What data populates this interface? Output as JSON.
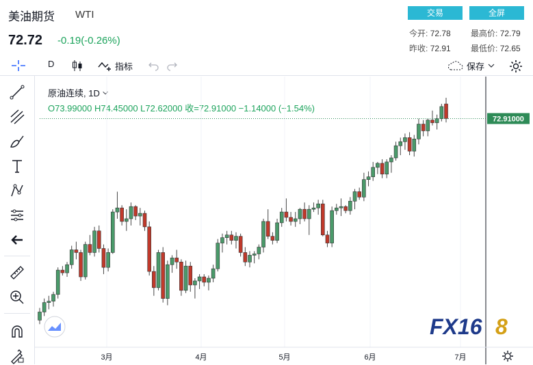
{
  "header": {
    "title": "美油期货",
    "symbol": "WTI",
    "price": "72.72",
    "change": "-0.19(-0.26%)",
    "buttons": {
      "trade": "交易",
      "fullscreen": "全屏"
    },
    "stats": {
      "open_label": "今开:",
      "open": "72.78",
      "high_label": "最高价:",
      "high": "72.79",
      "prev_label": "昨收:",
      "prev": "72.91",
      "low_label": "最低价:",
      "low": "72.65"
    }
  },
  "toolbar": {
    "interval": "D",
    "indicators_label": "指标",
    "save_label": "保存"
  },
  "legend": {
    "name": "原油连续, 1D",
    "ohlc": "O73.99000  H74.45000  L72.62000  收=72.91000  −1.14000 (−1.54%)"
  },
  "watermark": {
    "text_main": "FX16",
    "text_end": "8"
  },
  "colors": {
    "up": "#26a69a",
    "down": "#ef5350",
    "up_fill": "#4a9a6a",
    "down_fill": "#c0392b",
    "price_label": "#2e8b57",
    "accent": "#2bb8d4"
  },
  "chart_data": {
    "type": "candlestick",
    "symbol": "原油连续",
    "interval": "1D",
    "last_price_label": "72.91000",
    "x_ticks": [
      "3月",
      "4月",
      "5月",
      "6月",
      "7月"
    ],
    "ylim": [
      56.5,
      74.5
    ],
    "candles": [
      [
        58.0,
        58.9,
        57.7,
        58.6
      ],
      [
        58.6,
        59.6,
        58.3,
        59.3
      ],
      [
        59.3,
        59.8,
        58.8,
        59.4
      ],
      [
        59.4,
        60.1,
        59.0,
        59.9
      ],
      [
        59.9,
        61.9,
        59.6,
        61.7
      ],
      [
        61.7,
        62.0,
        61.3,
        61.5
      ],
      [
        61.5,
        62.3,
        61.2,
        62.1
      ],
      [
        62.1,
        63.5,
        61.8,
        63.2
      ],
      [
        63.2,
        63.8,
        62.5,
        63.0
      ],
      [
        63.0,
        63.2,
        60.9,
        61.2
      ],
      [
        61.2,
        63.8,
        61.0,
        63.6
      ],
      [
        63.6,
        64.3,
        62.8,
        63.0
      ],
      [
        63.0,
        64.9,
        62.7,
        64.6
      ],
      [
        64.6,
        65.0,
        63.0,
        63.3
      ],
      [
        63.3,
        63.6,
        61.4,
        61.9
      ],
      [
        61.9,
        63.3,
        61.6,
        63.0
      ],
      [
        63.0,
        66.2,
        62.9,
        66.0
      ],
      [
        66.0,
        67.5,
        65.5,
        66.3
      ],
      [
        66.3,
        66.5,
        65.0,
        65.3
      ],
      [
        65.3,
        66.2,
        64.6,
        65.5
      ],
      [
        65.5,
        66.7,
        65.0,
        66.4
      ],
      [
        66.4,
        66.5,
        65.4,
        65.7
      ],
      [
        65.7,
        66.3,
        65.0,
        65.9
      ],
      [
        65.9,
        66.1,
        64.6,
        64.9
      ],
      [
        64.9,
        65.3,
        61.3,
        61.6
      ],
      [
        61.6,
        62.0,
        59.8,
        60.4
      ],
      [
        60.4,
        63.2,
        60.2,
        63.0
      ],
      [
        63.0,
        63.4,
        59.3,
        59.6
      ],
      [
        59.6,
        62.4,
        59.1,
        62.1
      ],
      [
        62.1,
        62.8,
        61.5,
        62.6
      ],
      [
        62.6,
        63.2,
        61.8,
        62.3
      ],
      [
        62.3,
        62.5,
        59.8,
        60.2
      ],
      [
        60.2,
        62.4,
        60.0,
        62.0
      ],
      [
        62.0,
        62.3,
        60.1,
        60.6
      ],
      [
        60.6,
        61.1,
        59.6,
        60.9
      ],
      [
        60.9,
        61.4,
        60.3,
        61.2
      ],
      [
        61.2,
        61.4,
        60.5,
        60.8
      ],
      [
        60.8,
        61.3,
        60.2,
        61.1
      ],
      [
        61.1,
        62.1,
        60.8,
        61.8
      ],
      [
        61.8,
        64.0,
        61.6,
        63.7
      ],
      [
        63.7,
        64.4,
        63.0,
        64.1
      ],
      [
        64.1,
        64.6,
        63.6,
        64.3
      ],
      [
        64.3,
        64.6,
        63.6,
        63.9
      ],
      [
        63.9,
        64.5,
        63.3,
        64.2
      ],
      [
        64.2,
        64.4,
        62.7,
        63.0
      ],
      [
        63.0,
        63.4,
        62.0,
        62.3
      ],
      [
        62.3,
        63.1,
        61.9,
        62.8
      ],
      [
        62.8,
        63.1,
        62.2,
        62.9
      ],
      [
        62.9,
        63.6,
        62.5,
        63.4
      ],
      [
        63.4,
        65.5,
        63.0,
        65.3
      ],
      [
        65.3,
        66.2,
        64.0,
        64.2
      ],
      [
        64.2,
        64.5,
        63.6,
        63.9
      ],
      [
        63.9,
        65.5,
        63.7,
        65.2
      ],
      [
        65.2,
        66.3,
        64.9,
        66.0
      ],
      [
        66.0,
        67.0,
        65.3,
        65.6
      ],
      [
        65.6,
        66.0,
        65.0,
        65.3
      ],
      [
        65.3,
        66.0,
        64.9,
        65.5
      ],
      [
        65.5,
        66.3,
        65.1,
        66.2
      ],
      [
        66.2,
        66.7,
        65.3,
        65.5
      ],
      [
        65.5,
        66.5,
        64.3,
        66.2
      ],
      [
        66.2,
        66.7,
        66.0,
        66.3
      ],
      [
        66.3,
        66.9,
        65.8,
        66.6
      ],
      [
        66.6,
        66.9,
        64.2,
        64.3
      ],
      [
        64.3,
        64.6,
        63.4,
        63.7
      ],
      [
        63.7,
        66.4,
        63.4,
        66.1
      ],
      [
        66.1,
        66.6,
        65.8,
        66.3
      ],
      [
        66.3,
        67.0,
        65.7,
        66.4
      ],
      [
        66.4,
        66.5,
        65.9,
        66.1
      ],
      [
        66.1,
        67.1,
        65.8,
        66.8
      ],
      [
        66.8,
        67.7,
        66.2,
        67.5
      ],
      [
        67.5,
        67.8,
        66.9,
        67.1
      ],
      [
        67.1,
        68.9,
        66.8,
        68.4
      ],
      [
        68.4,
        69.0,
        67.9,
        68.6
      ],
      [
        68.6,
        69.7,
        68.3,
        69.3
      ],
      [
        69.3,
        69.7,
        68.8,
        69.6
      ],
      [
        69.6,
        69.9,
        68.5,
        68.8
      ],
      [
        68.8,
        69.9,
        68.5,
        69.7
      ],
      [
        69.7,
        70.2,
        68.9,
        70.0
      ],
      [
        70.0,
        71.2,
        69.8,
        70.9
      ],
      [
        70.9,
        71.5,
        70.2,
        71.2
      ],
      [
        71.2,
        71.8,
        70.6,
        71.5
      ],
      [
        71.5,
        71.9,
        70.2,
        70.5
      ],
      [
        70.5,
        71.7,
        70.1,
        71.4
      ],
      [
        71.4,
        72.9,
        71.0,
        72.5
      ],
      [
        72.5,
        72.8,
        71.6,
        72.0
      ],
      [
        72.0,
        72.9,
        71.6,
        72.8
      ],
      [
        72.8,
        73.5,
        72.4,
        72.6
      ],
      [
        72.6,
        73.2,
        72.1,
        72.9
      ],
      [
        72.9,
        74.0,
        72.7,
        73.8
      ],
      [
        73.99,
        74.45,
        72.62,
        72.91
      ]
    ]
  }
}
